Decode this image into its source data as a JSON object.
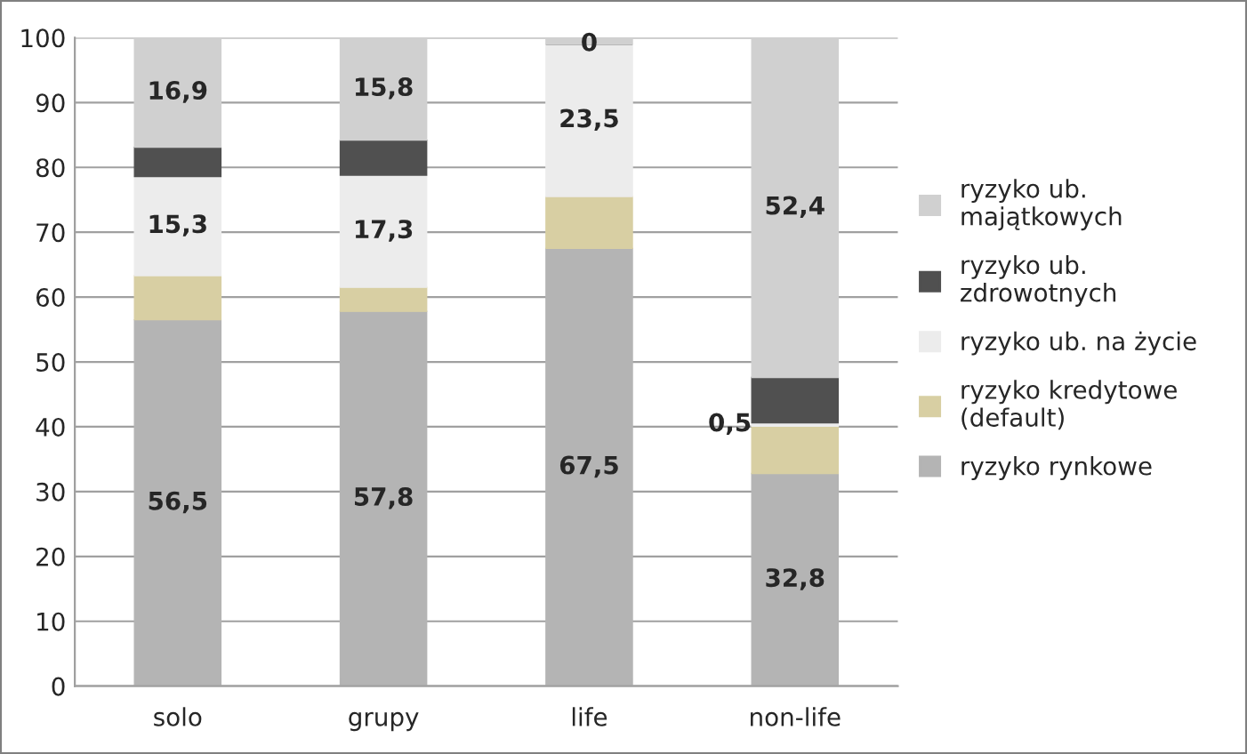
{
  "chart_data": {
    "type": "bar",
    "stacked": true,
    "categories": [
      "solo",
      "grupy",
      "life",
      "non-life"
    ],
    "series": [
      {
        "name": "ryzyko rynkowe",
        "color": "#b4b4b4",
        "values": [
          56.5,
          57.8,
          67.5,
          32.8
        ],
        "value_labels": [
          "56,5",
          "57,8",
          "67,5",
          "32,8"
        ]
      },
      {
        "name": "ryzyko kredytowe (default)",
        "color": "#d8cfa3",
        "values": [
          6.8,
          3.7,
          8.0,
          7.3
        ],
        "value_labels": [
          null,
          null,
          null,
          null
        ]
      },
      {
        "name": "ryzyko ub. na życie",
        "color": "#ececec",
        "values": [
          15.3,
          17.3,
          23.5,
          0.5
        ],
        "value_labels": [
          "15,3",
          "17,3",
          "23,5",
          "0,5"
        ]
      },
      {
        "name": "ryzyko ub. zdrowotnych",
        "color": "#505050",
        "values": [
          4.5,
          5.4,
          0,
          7.0
        ],
        "value_labels": [
          null,
          null,
          "0",
          null
        ]
      },
      {
        "name": "ryzyko ub. majątkowych",
        "color": "#d0d0d0",
        "values": [
          16.9,
          15.8,
          1.0,
          52.4
        ],
        "value_labels": [
          "16,9",
          "15,8",
          null,
          "52,4"
        ]
      }
    ],
    "ylim": [
      0,
      100
    ],
    "yticks": [
      0,
      10,
      20,
      30,
      40,
      50,
      60,
      70,
      80,
      90,
      100
    ],
    "grid": "y",
    "legend": "right"
  }
}
